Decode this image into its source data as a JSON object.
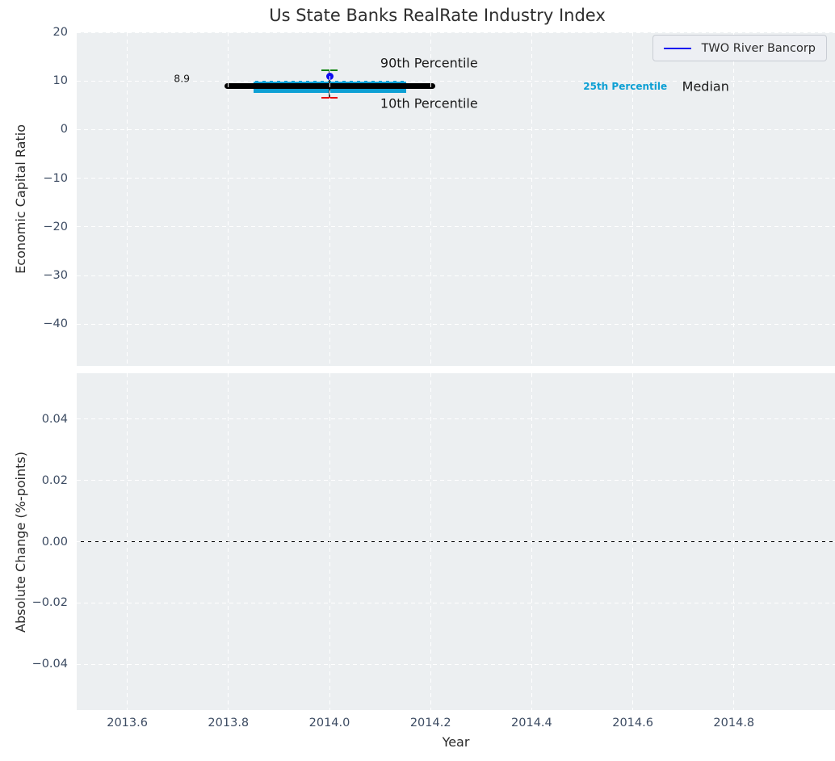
{
  "figure": {
    "background": "#ffffff",
    "axes_background": "#eceff1",
    "grid_color": "#ffffff",
    "tick_color": "#3c4b62"
  },
  "chart_data": [
    {
      "type": "percentile_index",
      "title": "Us State Banks RealRate Industry Index",
      "ylabel": "Economic Capital Ratio",
      "xlim": [
        2013.5,
        2015.0
      ],
      "ylim": [
        -48.6,
        20
      ],
      "grid": true,
      "xticks": [
        2013.6,
        2013.8,
        2014.0,
        2014.2,
        2014.4,
        2014.6,
        2014.8
      ],
      "xtick_labels_shown": false,
      "yticks": [
        20,
        10,
        0,
        -10,
        -20,
        -30,
        -40
      ],
      "ytick_labels": [
        "20",
        "10",
        "0",
        "−10",
        "−20",
        "−30",
        "−40"
      ],
      "legend": {
        "position": "upper right",
        "entries": [
          {
            "label": "TWO River Bancorp",
            "color": "#0d0df0"
          }
        ]
      },
      "series": {
        "year": 2014.0,
        "median": 8.9,
        "p75": 10.0,
        "p25": 7.6,
        "p90": 12.2,
        "p10": 6.5,
        "company_name": "TWO River Bancorp",
        "company_value": 11.0,
        "median_span": [
          2013.797,
          2014.205
        ],
        "band_span": [
          2013.85,
          2014.152
        ]
      },
      "colors": {
        "median_line": "#000000",
        "iqr_band": "#0da0d4",
        "p90_cap": "#008000",
        "p10_cap": "#e80000",
        "whisker_stem": "#3a3a3a",
        "company_dot": "#0d0df0"
      },
      "annotations": [
        {
          "id": "p90-label",
          "text": "90th Percentile",
          "x": 2014.197,
          "y": 13.69,
          "color": "#1a1a1a",
          "size": 16,
          "bold": false
        },
        {
          "id": "p10-label",
          "text": "10th Percentile",
          "x": 2014.197,
          "y": 5.38,
          "color": "#1a1a1a",
          "size": 16,
          "bold": false
        },
        {
          "id": "p25-label",
          "text": "25th Percentile",
          "x": 2014.585,
          "y": 8.87,
          "color": "#0da0d4",
          "size": 12,
          "bold": true
        },
        {
          "id": "median-label",
          "text": "Median",
          "x": 2014.744,
          "y": 8.87,
          "color": "#1a1a1a",
          "size": 16,
          "bold": false
        },
        {
          "id": "value-label",
          "text": "8.9",
          "x": 2013.708,
          "y": 10.6,
          "color": "#1a1a1a",
          "size": 12.5,
          "bold": false
        }
      ]
    },
    {
      "type": "line",
      "ylabel": "Absolute Change (%-points)",
      "xlabel": "Year",
      "xlim": [
        2013.5,
        2015.0
      ],
      "ylim": [
        -0.055,
        0.055
      ],
      "grid": true,
      "xticks": [
        2013.6,
        2013.8,
        2014.0,
        2014.2,
        2014.4,
        2014.6,
        2014.8
      ],
      "xtick_labels": [
        "2013.6",
        "2013.8",
        "2014.0",
        "2014.2",
        "2014.4",
        "2014.6",
        "2014.8"
      ],
      "yticks": [
        0.04,
        0.02,
        0.0,
        -0.02,
        -0.04
      ],
      "ytick_labels": [
        "0.04",
        "0.02",
        "0.00",
        "−0.02",
        "−0.04"
      ],
      "zero_line": {
        "y": 0.0,
        "color": "#000000"
      },
      "series": []
    }
  ]
}
